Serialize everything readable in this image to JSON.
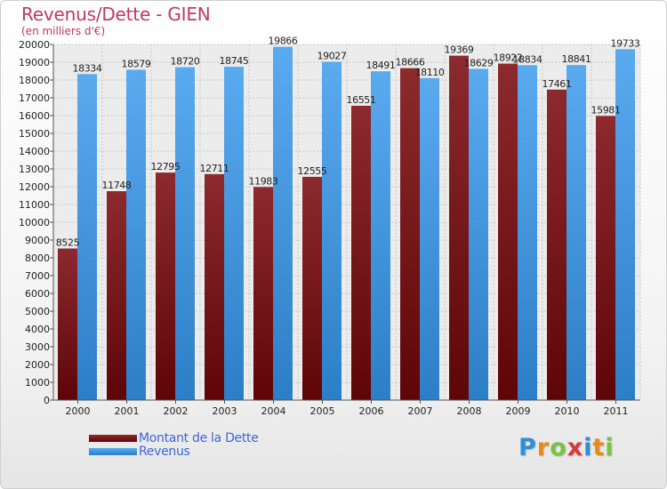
{
  "header": {
    "title": "Revenus/Dette - GIEN",
    "subtitle": "(en milliers d'€)"
  },
  "colors": {
    "dette": "#7a1a1e",
    "revenus": "#4d9fe6",
    "title": "#c0395f"
  },
  "chart_data": {
    "type": "bar",
    "title": "Revenus/Dette - GIEN",
    "subtitle": "(en milliers d'€)",
    "categories": [
      "2000",
      "2001",
      "2002",
      "2003",
      "2004",
      "2005",
      "2006",
      "2007",
      "2008",
      "2009",
      "2010",
      "2011"
    ],
    "series": [
      {
        "name": "Montant de la Dette",
        "values": [
          8525,
          11748,
          12795,
          12711,
          11983,
          12555,
          16551,
          18666,
          19369,
          18922,
          17461,
          15981
        ],
        "labels": [
          "8525",
          "11748",
          "12795",
          "12711",
          "11983",
          "12555",
          "16551",
          "18666",
          "19369",
          "18922",
          "17461",
          "15981"
        ]
      },
      {
        "name": "Revenus",
        "values": [
          18334,
          18579,
          18720,
          18745,
          19866,
          19027,
          18491,
          18110,
          18629,
          18834,
          18841,
          19733
        ],
        "labels": [
          "18334",
          "18579",
          "18720",
          "18745",
          "19866",
          "19027",
          "18491",
          "18110",
          "18629",
          "18834",
          "18841",
          "19733"
        ]
      }
    ],
    "ylim": [
      0,
      20000
    ],
    "ytick_step": 1000,
    "grid": true
  },
  "legend": {
    "items": [
      {
        "label": "Montant de la Dette",
        "color": "#7a1a1e"
      },
      {
        "label": "Revenus",
        "color": "#4d9fe6"
      }
    ]
  },
  "logo": {
    "letters": [
      "P",
      "r",
      "o",
      "x",
      "i",
      "t",
      "i"
    ],
    "colors": [
      "#2d8fd8",
      "#e88a1c",
      "#7cc242",
      "#d93a3a",
      "#2d8fd8",
      "#e88a1c",
      "#7cc242"
    ]
  }
}
